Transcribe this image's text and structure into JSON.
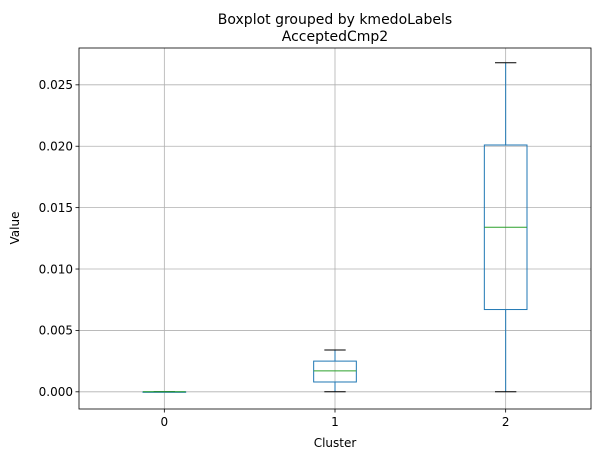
{
  "chart_data": {
    "type": "box",
    "suptitle": "Boxplot grouped by kmedoLabels",
    "title": "AcceptedCmp2",
    "xlabel": "Cluster",
    "ylabel": "Value",
    "categories": [
      "0",
      "1",
      "2"
    ],
    "ylim": [
      -0.0014,
      0.028
    ],
    "yticks": [
      0.0,
      0.005,
      0.01,
      0.015,
      0.02,
      0.025
    ],
    "ytick_labels": [
      "0.000",
      "0.005",
      "0.010",
      "0.015",
      "0.020",
      "0.025"
    ],
    "grid": true,
    "boxes": [
      {
        "category": "0",
        "whislo": 0.0,
        "q1": 0.0,
        "med": 0.0,
        "q3": 0.0,
        "whishi": 0.0
      },
      {
        "category": "1",
        "whislo": 0.0,
        "q1": 0.0008,
        "med": 0.0017,
        "q3": 0.0025,
        "whishi": 0.0034
      },
      {
        "category": "2",
        "whislo": 0.0,
        "q1": 0.0067,
        "med": 0.0134,
        "q3": 0.0201,
        "whishi": 0.0268
      }
    ],
    "colors": {
      "box": "#1f77b4",
      "median": "#2ca02c",
      "whisker": "#1f77b4",
      "cap": "#000000"
    }
  }
}
